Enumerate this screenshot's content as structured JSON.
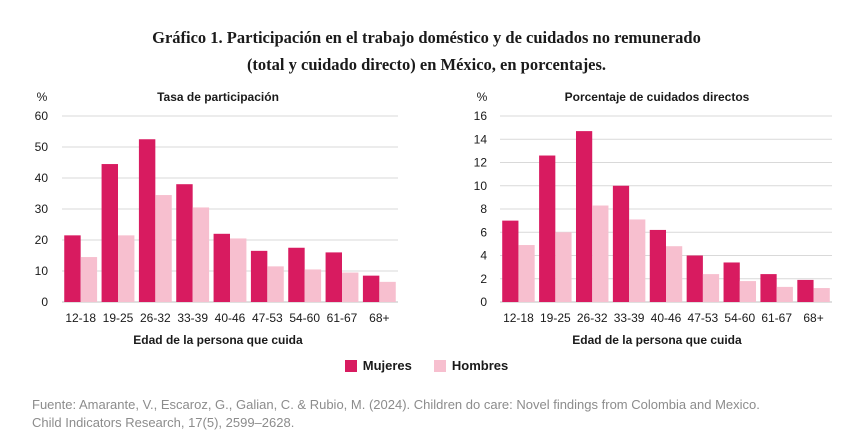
{
  "title_line1": "Gráfico 1. Participación en el trabajo doméstico y de cuidados no remunerado",
  "title_line2": "(total y cuidado directo) en México, en porcentajes.",
  "colors": {
    "mujeres": "#d81b60",
    "hombres": "#f7bfcf",
    "grid": "#d9d9d9"
  },
  "legend": [
    {
      "name": "Mujeres",
      "color": "#d81b60"
    },
    {
      "name": "Hombres",
      "color": "#f7bfcf"
    }
  ],
  "chart_data": [
    {
      "type": "bar",
      "title": "Tasa de participación",
      "unit_label": "%",
      "xlabel": "Edad de la persona que cuida",
      "ylabel": "%",
      "ylim": [
        0,
        60
      ],
      "yticks": [
        0,
        10,
        20,
        30,
        40,
        50,
        60
      ],
      "grid": true,
      "categories": [
        "12-18",
        "19-25",
        "26-32",
        "33-39",
        "40-46",
        "47-53",
        "54-60",
        "61-67",
        "68+"
      ],
      "series": [
        {
          "name": "Mujeres",
          "values": [
            21.5,
            44.5,
            52.5,
            38,
            22,
            16.5,
            17.5,
            16,
            8.5
          ]
        },
        {
          "name": "Hombres",
          "values": [
            14.5,
            21.5,
            34.5,
            30.5,
            20.5,
            11.5,
            10.5,
            9.5,
            6.5
          ]
        }
      ]
    },
    {
      "type": "bar",
      "title": "Porcentaje de cuidados directos",
      "unit_label": "%",
      "xlabel": "Edad de la persona que cuida",
      "ylabel": "%",
      "ylim": [
        0,
        16
      ],
      "yticks": [
        0,
        2,
        4,
        6,
        8,
        10,
        12,
        14,
        16
      ],
      "grid": true,
      "categories": [
        "12-18",
        "19-25",
        "26-32",
        "33-39",
        "40-46",
        "47-53",
        "54-60",
        "61-67",
        "68+"
      ],
      "series": [
        {
          "name": "Mujeres",
          "values": [
            7,
            12.6,
            14.7,
            10,
            6.2,
            4,
            3.4,
            2.4,
            1.9
          ]
        },
        {
          "name": "Hombres",
          "values": [
            4.9,
            6,
            8.3,
            7.1,
            4.8,
            2.4,
            1.8,
            1.3,
            1.2
          ]
        }
      ]
    }
  ],
  "source_line1": "Fuente: Amarante, V., Escaroz, G., Galian, C. & Rubio, M. (2024). Children do care: Novel findings from Colombia and Mexico.",
  "source_line2": "Child Indicators Research, 17(5), 2599–2628."
}
